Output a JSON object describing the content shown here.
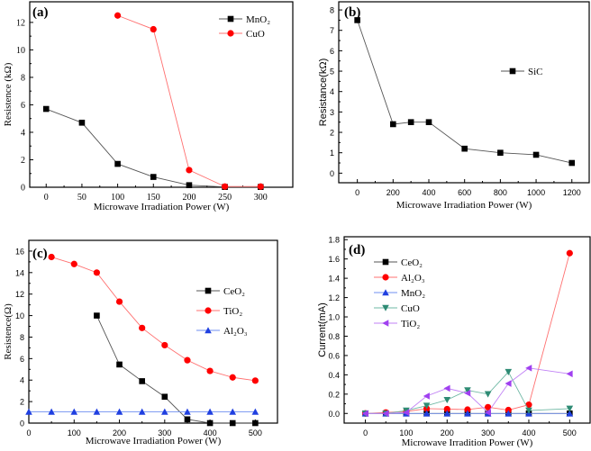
{
  "chart_data": [
    {
      "type": "line",
      "panel_label": "(a)",
      "xlabel": "Microwave Irradiation Power (W)",
      "ylabel": "Resistence (kΩ)",
      "xlim": [
        -23,
        345
      ],
      "ylim": [
        0,
        13.5
      ],
      "xticks": [
        "0",
        "50",
        "100",
        "150",
        "200",
        "250",
        "300"
      ],
      "yticks": [
        "0",
        "2",
        "4",
        "6",
        "8",
        "10",
        "12"
      ],
      "legend_position": "top-right",
      "series": [
        {
          "name": "MnO₂",
          "marker": "square",
          "color": "#000000",
          "line_color": "#555555",
          "x": [
            0,
            50,
            100,
            150,
            200,
            250,
            300
          ],
          "y": [
            5.7,
            4.7,
            1.7,
            0.75,
            0.15,
            0.02,
            0.02
          ]
        },
        {
          "name": "CuO",
          "marker": "circle",
          "color": "#ff0000",
          "line_color": "#ff7070",
          "x": [
            100,
            150,
            200,
            250,
            300
          ],
          "y": [
            12.5,
            11.5,
            1.25,
            0.05,
            0.05
          ]
        }
      ]
    },
    {
      "type": "line",
      "panel_label": "(b)",
      "xlabel": "Microwave Irradiation Power (W)",
      "ylabel": "Resistance(kΩ)",
      "xlim": [
        -104,
        1297
      ],
      "ylim": [
        -0.47,
        8.4
      ],
      "xticks": [
        "0",
        "200",
        "400",
        "600",
        "800",
        "1000",
        "1200"
      ],
      "yticks": [
        "0",
        "1",
        "2",
        "3",
        "4",
        "5",
        "6",
        "7",
        "8"
      ],
      "legend_position": "center-right",
      "series": [
        {
          "name": "SiC",
          "marker": "square",
          "color": "#000000",
          "line_color": "#555555",
          "x": [
            0,
            200,
            300,
            400,
            600,
            800,
            1000,
            1200
          ],
          "y": [
            7.5,
            2.4,
            2.5,
            2.5,
            1.2,
            1.0,
            0.9,
            0.5
          ]
        }
      ]
    },
    {
      "type": "line",
      "panel_label": "(c)",
      "xlabel": "Microwave Irradiation Power (W)",
      "ylabel": "Resistence(Ω)",
      "xlim": [
        0,
        549
      ],
      "ylim": [
        0,
        17
      ],
      "xticks": [
        "0",
        "100",
        "200",
        "300",
        "400",
        "500"
      ],
      "yticks": [
        "0",
        "2",
        "4",
        "6",
        "8",
        "10",
        "12",
        "14",
        "16"
      ],
      "legend_position": "center-right",
      "series": [
        {
          "name": "CeO₂",
          "marker": "square",
          "color": "#000000",
          "line_color": "#555555",
          "x": [
            150,
            200,
            250,
            300,
            350,
            400,
            450,
            500
          ],
          "y": [
            10,
            5.45,
            3.9,
            2.45,
            0.35,
            0,
            0,
            0
          ]
        },
        {
          "name": "TiO₂",
          "marker": "circle",
          "color": "#ff0000",
          "line_color": "#ff7070",
          "x": [
            50,
            100,
            150,
            200,
            250,
            300,
            350,
            400,
            450,
            500
          ],
          "y": [
            15.45,
            14.8,
            14,
            11.3,
            8.85,
            7.25,
            5.85,
            4.85,
            4.25,
            3.95
          ]
        },
        {
          "name": "Al₂O₃",
          "marker": "triangle-up",
          "color": "#1f3fe0",
          "line_color": "#6f8ff0",
          "x": [
            0,
            50,
            100,
            150,
            200,
            250,
            300,
            350,
            400,
            450,
            500
          ],
          "y": [
            1.05,
            1.05,
            1.05,
            1.05,
            1.05,
            1.05,
            1.05,
            1.05,
            1.05,
            1.05,
            1.05
          ]
        }
      ]
    },
    {
      "type": "line",
      "panel_label": "(d)",
      "xlabel": "Microwave Irradition Power (W)",
      "ylabel": "Current(mA)",
      "xlim": [
        -52,
        550
      ],
      "ylim": [
        -0.1,
        1.83
      ],
      "xticks": [
        "0",
        "100",
        "200",
        "300",
        "400",
        "500"
      ],
      "yticks": [
        "0.0",
        "0.2",
        "0.4",
        "0.6",
        "0.8",
        "1.0",
        "1.2",
        "1.4",
        "1.6",
        "1.8"
      ],
      "legend_position": "top-left",
      "series": [
        {
          "name": "CeO₂",
          "marker": "square",
          "color": "#000000",
          "line_color": "#555555",
          "x": [
            0,
            50,
            100,
            150,
            200,
            250,
            300,
            350,
            400,
            500
          ],
          "y": [
            0,
            0,
            0,
            0,
            0,
            0,
            0,
            0,
            0,
            0
          ]
        },
        {
          "name": "Al₂O₃",
          "marker": "circle",
          "color": "#ff0000",
          "line_color": "#ff7070",
          "x": [
            0,
            50,
            100,
            150,
            200,
            250,
            300,
            350,
            400,
            500
          ],
          "y": [
            0,
            0.01,
            0.02,
            0.05,
            0.045,
            0.04,
            0.065,
            0.035,
            0.09,
            1.66
          ]
        },
        {
          "name": "MnO₂",
          "marker": "triangle-up",
          "color": "#1f3fe0",
          "line_color": "#6f8ff0",
          "x": [
            0,
            50,
            100,
            150,
            200,
            250,
            300,
            350,
            400,
            500
          ],
          "y": [
            0,
            0,
            0,
            0,
            0,
            0,
            0,
            0,
            0,
            0
          ]
        },
        {
          "name": "CuO",
          "marker": "triangle-down",
          "color": "#2e8b74",
          "line_color": "#6fb8a4",
          "x": [
            0,
            50,
            100,
            150,
            200,
            250,
            300,
            350,
            400,
            500
          ],
          "y": [
            0,
            0,
            0.03,
            0.08,
            0.14,
            0.24,
            0.2,
            0.43,
            0.03,
            0.05
          ]
        },
        {
          "name": "TiO₂",
          "marker": "triangle-left",
          "color": "#a040f0",
          "line_color": "#c080f5",
          "x": [
            0,
            50,
            100,
            150,
            200,
            250,
            300,
            350,
            400,
            500
          ],
          "y": [
            0,
            0,
            0.01,
            0.18,
            0.26,
            0.21,
            0.01,
            0.31,
            0.47,
            0.41
          ]
        }
      ]
    }
  ]
}
